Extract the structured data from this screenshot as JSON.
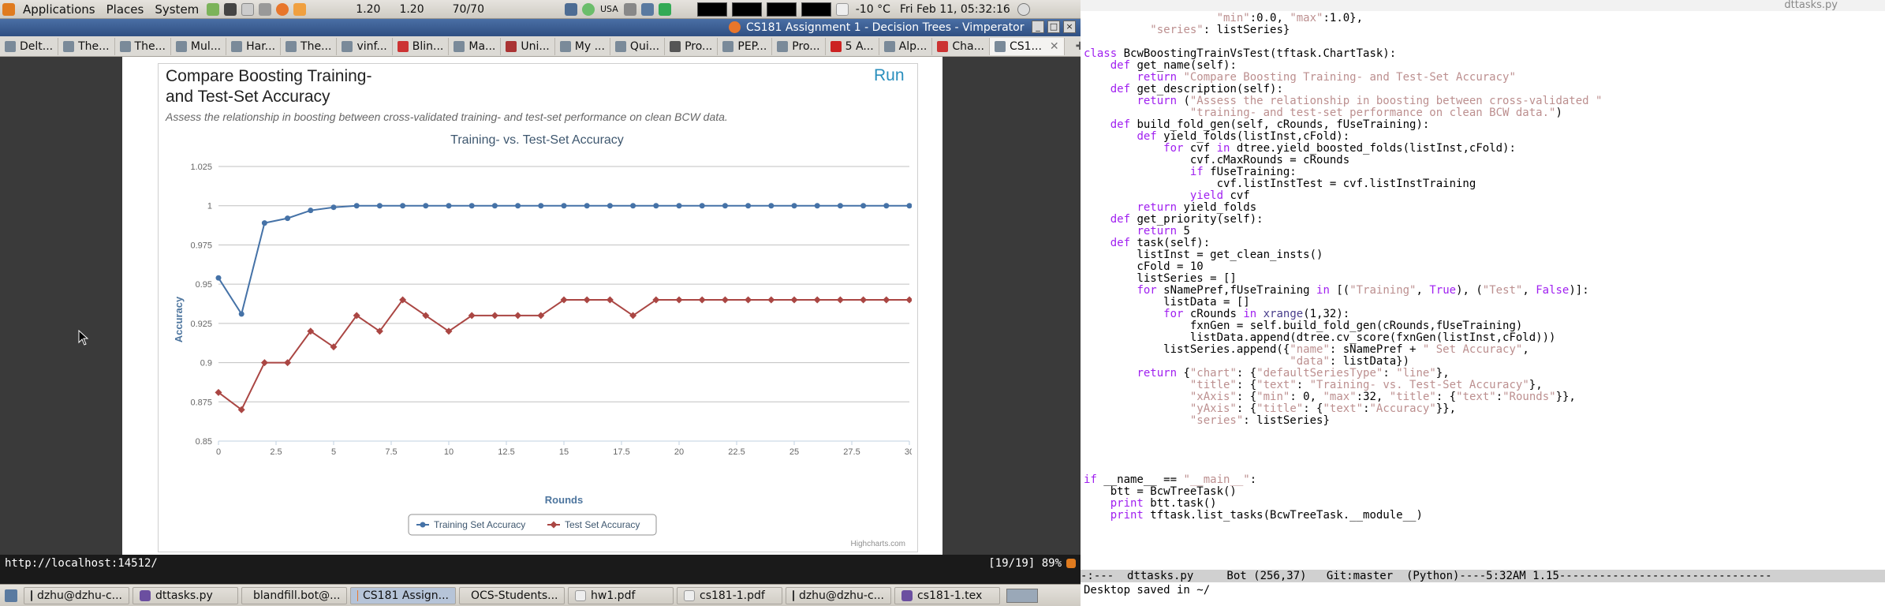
{
  "top_panel": {
    "menus": [
      "Applications",
      "Places",
      "System"
    ],
    "load_values": [
      "1.20",
      "1.20"
    ],
    "temp_reading": "70/70",
    "usa_label": "USA",
    "weather": "-10 °C",
    "clock": "Fri Feb 11, 05:32:16"
  },
  "browser": {
    "title": "CS181 Assignment 1 - Decision Trees - Vimperator",
    "tabs": [
      "Delt...",
      "The...",
      "The...",
      "Mul...",
      "Har...",
      "The...",
      "vinf...",
      "Blin...",
      "Ma...",
      "Uni...",
      "My ...",
      "Qui...",
      "Pro...",
      "PEP...",
      "Pro...",
      "5 A...",
      "Alp...",
      "Cha...",
      "CS1..."
    ],
    "status_url": "http://localhost:14512/",
    "status_pos": "[19/19] 89%"
  },
  "task": {
    "title_line1": "Compare Boosting Training-",
    "title_line2": "and Test-Set Accuracy",
    "run_label": "Run",
    "description": "Assess the relationship in boosting between cross-validated training- and test-set performance on clean BCW data."
  },
  "chart_data": {
    "type": "line",
    "title": "Training- vs. Test-Set Accuracy",
    "xlabel": "Rounds",
    "ylabel": "Accuracy",
    "xlim": [
      0,
      30
    ],
    "ylim": [
      0.85,
      1.025
    ],
    "x_ticks": [
      "0",
      "2.5",
      "5",
      "7.5",
      "10",
      "12.5",
      "15",
      "17.5",
      "20",
      "22.5",
      "25",
      "27.5",
      "30"
    ],
    "y_ticks": [
      "0.85",
      "0.875",
      "0.9",
      "0.925",
      "0.95",
      "0.975",
      "1",
      "1.025"
    ],
    "x": [
      0,
      1,
      2,
      3,
      4,
      5,
      6,
      7,
      8,
      9,
      10,
      11,
      12,
      13,
      14,
      15,
      16,
      17,
      18,
      19,
      20,
      21,
      22,
      23,
      24,
      25,
      26,
      27,
      28,
      29,
      30
    ],
    "series": [
      {
        "name": "Training Set Accuracy",
        "color": "#4572a7",
        "marker": "circle",
        "values": [
          0.954,
          0.931,
          0.989,
          0.992,
          0.997,
          0.999,
          1,
          1,
          1,
          1,
          1,
          1,
          1,
          1,
          1,
          1,
          1,
          1,
          1,
          1,
          1,
          1,
          1,
          1,
          1,
          1,
          1,
          1,
          1,
          1,
          1
        ]
      },
      {
        "name": "Test Set Accuracy",
        "color": "#aa4643",
        "marker": "diamond",
        "values": [
          0.881,
          0.87,
          0.9,
          0.9,
          0.92,
          0.91,
          0.93,
          0.92,
          0.94,
          0.93,
          0.92,
          0.93,
          0.93,
          0.93,
          0.93,
          0.94,
          0.94,
          0.94,
          0.93,
          0.94,
          0.94,
          0.94,
          0.94,
          0.94,
          0.94,
          0.94,
          0.94,
          0.94,
          0.94,
          0.94,
          0.94
        ]
      }
    ],
    "legend": "bottom-center",
    "credit": "Highcharts.com"
  },
  "taskbar": {
    "items": [
      "dzhu@dzhu-c...",
      "dttasks.py",
      "blandfill.bot@...",
      "CS181 Assign...",
      "OCS-Students...",
      "hw1.pdf",
      "cs181-1.pdf",
      "dzhu@dzhu-c...",
      "cs181-1.tex"
    ]
  },
  "emacs": {
    "title": "dttasks.py",
    "code_lines": [
      "                    \"min\":0.0, \"max\":1.0},",
      "          \"series\": listSeries}",
      "",
      "class BcwBoostingTrainVsTest(tftask.ChartTask):",
      "    def get_name(self):",
      "        return \"Compare Boosting Training- and Test-Set Accuracy\"",
      "    def get_description(self):",
      "        return (\"Assess the relationship in boosting between cross-validated \"",
      "                \"training- and test-set performance on clean BCW data.\")",
      "    def build_fold_gen(self, cRounds, fUseTraining):",
      "        def yield_folds(listInst,cFold):",
      "            for cvf in dtree.yield_boosted_folds(listInst,cFold):",
      "                cvf.cMaxRounds = cRounds",
      "                if fUseTraining:",
      "                    cvf.listInstTest = cvf.listInstTraining",
      "                yield cvf",
      "        return yield_folds",
      "    def get_priority(self):",
      "        return 5",
      "    def task(self):",
      "        listInst = get_clean_insts()",
      "        cFold = 10",
      "        listSeries = []",
      "        for sNamePref,fUseTraining in [(\"Training\", True), (\"Test\", False)]:",
      "            listData = []",
      "            for cRounds in xrange(1,32):",
      "                fxnGen = self.build_fold_gen(cRounds,fUseTraining)",
      "                listData.append(dtree.cv_score(fxnGen(listInst,cFold)))",
      "            listSeries.append({\"name\": sNamePref + \" Set Accuracy\",",
      "                               \"data\": listData})",
      "        return {\"chart\": {\"defaultSeriesType\": \"line\"},",
      "                \"title\": {\"text\": \"Training- vs. Test-Set Accuracy\"},",
      "                \"xAxis\": {\"min\": 0, \"max\":32, \"title\": {\"text\":\"Rounds\"}},",
      "                \"yAxis\": {\"title\": {\"text\":\"Accuracy\"}},",
      "                \"series\": listSeries}",
      "",
      "",
      "",
      "",
      "if __name__ == \"__main__\":",
      "    btt = BcwTreeTask()",
      "    print btt.task()",
      "    print tftask.list_tasks(BcwTreeTask.__module__)"
    ],
    "modeline": "-:---  dttasks.py     Bot (256,37)   Git:master  (Python)----5:32AM 1.15--------------------------------",
    "minibuffer": "Desktop saved in ~/"
  }
}
